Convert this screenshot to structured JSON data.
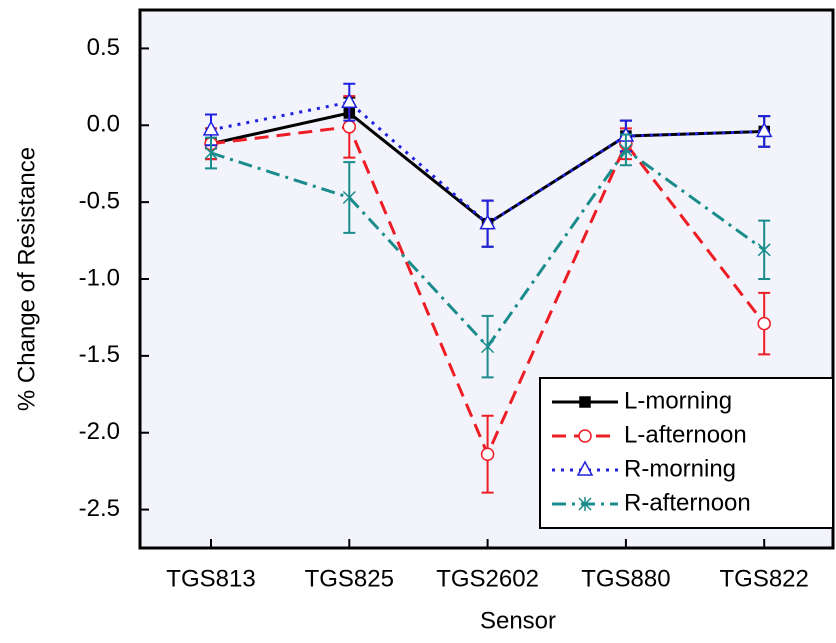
{
  "chart_data": {
    "type": "line",
    "x_label": "Sensor",
    "y_label": "% Change of Resistance",
    "categories": [
      "TGS813",
      "TGS825",
      "TGS2602",
      "TGS880",
      "TGS822"
    ],
    "series": [
      {
        "name": "L-morning",
        "color": "#000000",
        "dash": "solid",
        "marker": "square",
        "values": [
          -0.12,
          0.08,
          -0.64,
          -0.07,
          -0.04
        ],
        "errors": [
          0.1,
          0.1,
          0.15,
          0.1,
          0.1
        ]
      },
      {
        "name": "L-afternoon",
        "color": "#ee1c24",
        "dash": "dash",
        "marker": "circle",
        "values": [
          -0.12,
          -0.01,
          -2.14,
          -0.12,
          -1.29
        ],
        "errors": [
          0.1,
          0.2,
          0.25,
          0.1,
          0.2
        ]
      },
      {
        "name": "R-morning",
        "color": "#2020e0",
        "dash": "dot",
        "marker": "triangle",
        "values": [
          -0.03,
          0.15,
          -0.64,
          -0.07,
          -0.04
        ],
        "errors": [
          0.1,
          0.12,
          0.15,
          0.1,
          0.1
        ]
      },
      {
        "name": "R-afternoon",
        "color": "#1a8c8c",
        "dash": "dashdot",
        "marker": "star",
        "values": [
          -0.18,
          -0.47,
          -1.44,
          -0.16,
          -0.81
        ],
        "errors": [
          0.1,
          0.23,
          0.2,
          0.1,
          0.19
        ]
      }
    ],
    "ylim": [
      -2.75,
      0.75
    ],
    "yticks": [
      0.5,
      {
        "value": 0,
        "label": "0.0"
      },
      -0.5,
      {
        "value": -1,
        "label": "-1.0"
      },
      -1.5,
      {
        "value": -2,
        "label": "-2.0"
      },
      -2.5
    ],
    "legend": "lower-right"
  }
}
